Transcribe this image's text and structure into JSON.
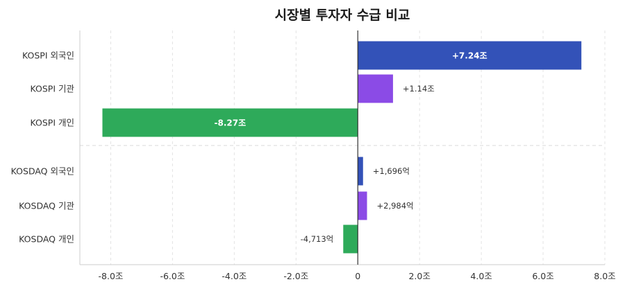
{
  "chart_data": {
    "type": "bar",
    "orientation": "horizontal",
    "title": "시장별 투자자 수급 비교",
    "xlabel": "",
    "ylabel": "",
    "unit": "조",
    "xlim": [
      -9.0,
      8.0
    ],
    "x_ticks": [
      -8,
      -6,
      -4,
      -2,
      0,
      2,
      4,
      6,
      8
    ],
    "x_tick_labels": [
      "-8.0조",
      "-6.0조",
      "-4.0조",
      "-2.0조",
      "0",
      "2.0조",
      "4.0조",
      "6.0조",
      "8.0조"
    ],
    "grid": true,
    "legend": "none",
    "groups": [
      "KOSPI",
      "KOSDAQ"
    ],
    "categories": [
      "KOSPI 외국인",
      "KOSPI 기관",
      "KOSPI 개인",
      "KOSDAQ 외국인",
      "KOSDAQ 기관",
      "KOSDAQ 개인"
    ],
    "values": [
      7.24,
      1.14,
      -8.27,
      0.1696,
      0.2984,
      -0.4713
    ],
    "data_labels": [
      "+7.24조",
      "+1.14조",
      "-8.27조",
      "+1,696억",
      "+2,984억",
      "-4,713억"
    ],
    "label_inside": [
      true,
      false,
      true,
      false,
      false,
      false
    ],
    "colors": [
      "#3352b8",
      "#8b4be6",
      "#2eaa5a",
      "#3352b8",
      "#8b4be6",
      "#2eaa5a"
    ]
  }
}
